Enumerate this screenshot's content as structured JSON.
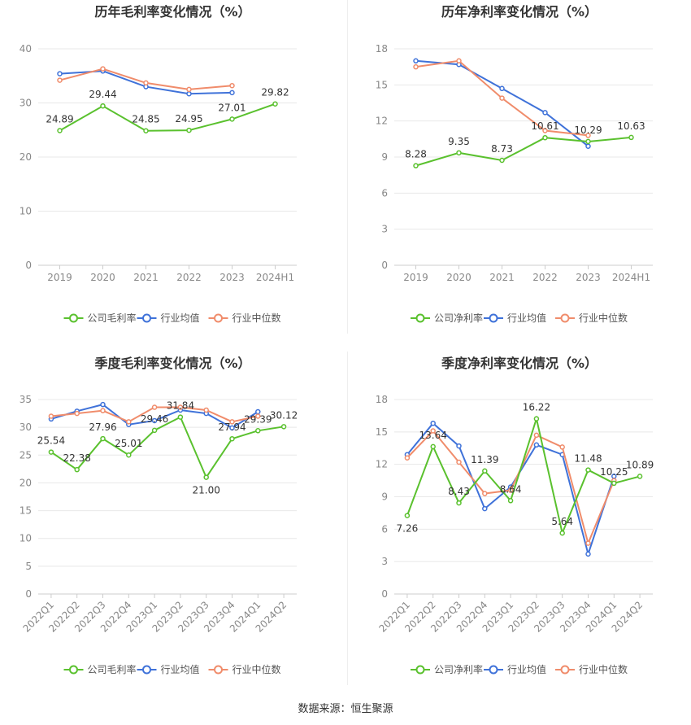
{
  "source": "数据来源：恒生聚源",
  "colors": {
    "company": "#5ac12e",
    "avg": "#3f72d9",
    "median": "#f08c6b"
  },
  "chart_data": [
    {
      "type": "line",
      "title": "历年毛利率变化情况（%）",
      "categories": [
        "2019",
        "2020",
        "2021",
        "2022",
        "2023",
        "2024H1"
      ],
      "ylim": [
        0,
        40
      ],
      "yticks": [
        0,
        10,
        20,
        30,
        40
      ],
      "rotate_x": false,
      "legend": [
        "公司毛利率",
        "行业均值",
        "行业中位数"
      ],
      "series": [
        {
          "name": "公司毛利率",
          "role": "company",
          "values": [
            24.89,
            29.44,
            24.85,
            24.95,
            27.01,
            29.82
          ],
          "labels": [
            "24.89",
            "29.44",
            "24.85",
            "24.95",
            "27.01",
            "29.82"
          ]
        },
        {
          "name": "行业均值",
          "role": "avg",
          "values": [
            35.4,
            35.9,
            33.0,
            31.7,
            31.9,
            null
          ]
        },
        {
          "name": "行业中位数",
          "role": "median",
          "values": [
            34.2,
            36.3,
            33.7,
            32.5,
            33.2,
            null
          ]
        }
      ]
    },
    {
      "type": "line",
      "title": "历年净利率变化情况（%）",
      "categories": [
        "2019",
        "2020",
        "2021",
        "2022",
        "2023",
        "2024H1"
      ],
      "ylim": [
        0,
        18
      ],
      "yticks": [
        0,
        3,
        6,
        9,
        12,
        15,
        18
      ],
      "rotate_x": false,
      "legend": [
        "公司净利率",
        "行业均值",
        "行业中位数"
      ],
      "series": [
        {
          "name": "公司净利率",
          "role": "company",
          "values": [
            8.28,
            9.35,
            8.73,
            10.61,
            10.29,
            10.63
          ],
          "labels": [
            "8.28",
            "9.35",
            "8.73",
            "10.61",
            "10.29",
            "10.63"
          ]
        },
        {
          "name": "行业均值",
          "role": "avg",
          "values": [
            17.0,
            16.7,
            14.7,
            12.7,
            9.9,
            null
          ]
        },
        {
          "name": "行业中位数",
          "role": "median",
          "values": [
            16.5,
            17.0,
            13.9,
            11.2,
            10.8,
            null
          ]
        }
      ]
    },
    {
      "type": "line",
      "title": "季度毛利率变化情况（%）",
      "categories": [
        "2022Q1",
        "2022Q2",
        "2022Q3",
        "2022Q4",
        "2023Q1",
        "2023Q2",
        "2023Q3",
        "2023Q4",
        "2024Q1",
        "2024Q2"
      ],
      "ylim": [
        0,
        35
      ],
      "yticks": [
        0,
        5,
        10,
        15,
        20,
        25,
        30,
        35
      ],
      "rotate_x": true,
      "legend": [
        "公司毛利率",
        "行业均值",
        "行业中位数"
      ],
      "series": [
        {
          "name": "公司毛利率",
          "role": "company",
          "values": [
            25.54,
            22.38,
            27.96,
            25.01,
            29.46,
            31.84,
            21.0,
            27.94,
            29.39,
            30.12
          ],
          "labels": [
            "25.54",
            "22.38",
            "27.96",
            "25.01",
            "29.46",
            "31.84",
            "21.00",
            "27.94",
            "29.39",
            "30.12"
          ]
        },
        {
          "name": "行业均值",
          "role": "avg",
          "values": [
            31.5,
            32.9,
            34.1,
            30.5,
            31.2,
            33.1,
            32.5,
            29.9,
            32.8,
            null
          ]
        },
        {
          "name": "行业中位数",
          "role": "median",
          "values": [
            32.0,
            32.5,
            33.0,
            31.0,
            33.6,
            33.6,
            33.1,
            31.0,
            32.0,
            null
          ]
        }
      ]
    },
    {
      "type": "line",
      "title": "季度净利率变化情况（%）",
      "categories": [
        "2022Q1",
        "2022Q2",
        "2022Q3",
        "2022Q4",
        "2023Q1",
        "2023Q2",
        "2023Q3",
        "2023Q4",
        "2024Q1",
        "2024Q2"
      ],
      "ylim": [
        0,
        18
      ],
      "yticks": [
        0,
        3,
        6,
        9,
        12,
        15,
        18
      ],
      "rotate_x": true,
      "legend": [
        "公司净利率",
        "行业均值",
        "行业中位数"
      ],
      "series": [
        {
          "name": "公司净利率",
          "role": "company",
          "values": [
            7.26,
            13.64,
            8.43,
            11.39,
            8.64,
            16.22,
            5.64,
            11.48,
            10.25,
            10.89
          ],
          "labels": [
            "7.26",
            "13.64",
            "8.43",
            "11.39",
            "8.64",
            "16.22",
            "5.64",
            "11.48",
            "10.25",
            "10.89"
          ]
        },
        {
          "name": "行业均值",
          "role": "avg",
          "values": [
            12.9,
            15.8,
            13.7,
            7.9,
            9.9,
            13.8,
            12.9,
            3.7,
            10.9,
            null
          ]
        },
        {
          "name": "行业中位数",
          "role": "median",
          "values": [
            12.6,
            15.1,
            12.2,
            9.3,
            9.6,
            14.7,
            13.6,
            4.7,
            10.5,
            null
          ]
        }
      ]
    }
  ]
}
